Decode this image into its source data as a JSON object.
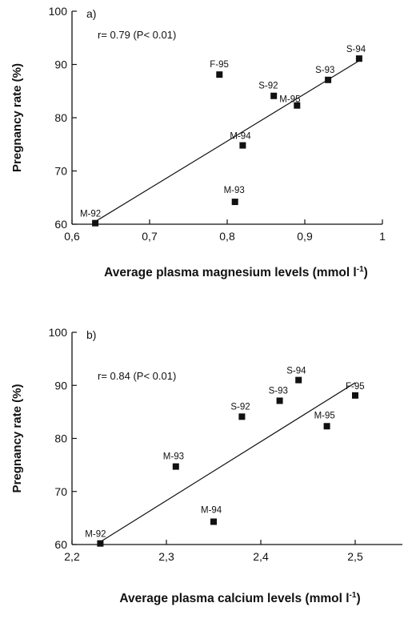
{
  "chart_data": [
    {
      "type": "scatter",
      "panel_label": "a)",
      "annotation": "r= 0.79 (P< 0.01)",
      "ylabel": "Pregnancy rate (%)",
      "xlabel": "Average plasma magnesium levels (mmol l",
      "xlabel_sup": "-1",
      "xlabel_close": ")",
      "xlim": [
        0.6,
        1.0
      ],
      "ylim": [
        60,
        100
      ],
      "xticks": [
        0.6,
        0.7,
        0.8,
        0.9,
        1.0
      ],
      "xtick_labels": [
        "0,6",
        "0,7",
        "0,8",
        "0,9",
        "1"
      ],
      "yticks": [
        60,
        70,
        80,
        90,
        100
      ],
      "ytick_labels": [
        "60",
        "70",
        "80",
        "90",
        "100"
      ],
      "points": [
        {
          "label": "M-92",
          "x": 0.63,
          "y": 60.2
        },
        {
          "label": "M-93",
          "x": 0.81,
          "y": 64.2
        },
        {
          "label": "M-94",
          "x": 0.82,
          "y": 74.8
        },
        {
          "label": "F-95",
          "x": 0.79,
          "y": 88.1
        },
        {
          "label": "S-92",
          "x": 0.86,
          "y": 84.1
        },
        {
          "label": "M-95",
          "x": 0.89,
          "y": 82.3
        },
        {
          "label": "S-93",
          "x": 0.93,
          "y": 87.1
        },
        {
          "label": "S-94",
          "x": 0.97,
          "y": 91.1
        }
      ],
      "fit_line": {
        "x1": 0.63,
        "y1": 60.5,
        "x2": 0.97,
        "y2": 90.7
      }
    },
    {
      "type": "scatter",
      "panel_label": "b)",
      "annotation": "r= 0.84 (P< 0.01)",
      "ylabel": "Pregnancy rate (%)",
      "xlabel": "Average plasma calcium levels (mmol l",
      "xlabel_sup": "-1",
      "xlabel_close": ")",
      "xlim": [
        2.2,
        2.55
      ],
      "ylim": [
        60,
        100
      ],
      "xticks": [
        2.2,
        2.3,
        2.4,
        2.5
      ],
      "xtick_labels": [
        "2,2",
        "2,3",
        "2,4",
        "2,5"
      ],
      "yticks": [
        60,
        70,
        80,
        90,
        100
      ],
      "ytick_labels": [
        "60",
        "70",
        "80",
        "90",
        "100"
      ],
      "points": [
        {
          "label": "M-92",
          "x": 2.23,
          "y": 60.2
        },
        {
          "label": "M-93",
          "x": 2.31,
          "y": 74.7
        },
        {
          "label": "M-94",
          "x": 2.35,
          "y": 64.3
        },
        {
          "label": "S-92",
          "x": 2.38,
          "y": 84.1
        },
        {
          "label": "S-93",
          "x": 2.42,
          "y": 87.1
        },
        {
          "label": "S-94",
          "x": 2.44,
          "y": 91.0
        },
        {
          "label": "M-95",
          "x": 2.47,
          "y": 82.3
        },
        {
          "label": "F-95",
          "x": 2.5,
          "y": 88.1
        }
      ],
      "fit_line": {
        "x1": 2.23,
        "y1": 60.5,
        "x2": 2.5,
        "y2": 90.5
      }
    }
  ]
}
